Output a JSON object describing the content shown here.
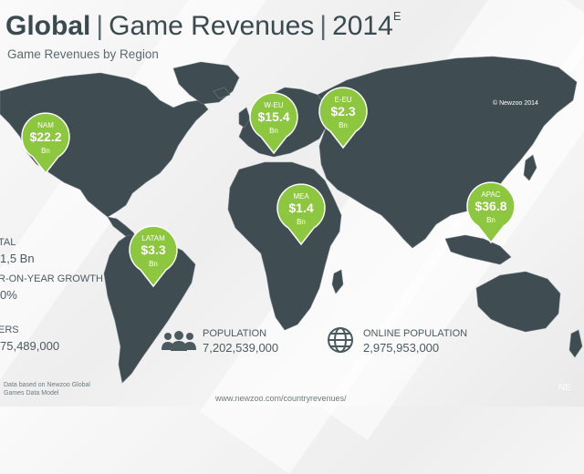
{
  "header": {
    "title_bold": "Global",
    "sep1": "|",
    "title_mid": "Game Revenues",
    "sep2": "|",
    "year": "2014",
    "year_mark": "E",
    "subtitle": "Game Revenues by Region",
    "copyright": "© Newzoo 2014"
  },
  "regions": [
    {
      "label": "NAM",
      "value": "$22.2",
      "unit": "Bn"
    },
    {
      "label": "W-EU",
      "value": "$15.4",
      "unit": "Bn"
    },
    {
      "label": "E-EU",
      "value": "$2.3",
      "unit": "Bn"
    },
    {
      "label": "MEA",
      "value": "$1.4",
      "unit": "Bn"
    },
    {
      "label": "APAC",
      "value": "$36.8",
      "unit": "Bn"
    },
    {
      "label": "LATAM",
      "value": "$3.3",
      "unit": "Bn"
    }
  ],
  "stats": {
    "total_label": "TAL",
    "total_value": "1,5 Bn",
    "growth_label": "R-ON-YEAR GROWTH",
    "growth_value": "0%",
    "players_label": "ERS",
    "players_value": "75,489,000",
    "population_label": "POPULATION",
    "population_value": "7,202,539,000",
    "online_label": "ONLINE POPULATION",
    "online_value": "2,975,953,000"
  },
  "footer": {
    "note_line1": "Data based on Newzoo Global",
    "note_line2": "Games Data Model",
    "url": "www.newzoo.com/countryrevenues/",
    "corner": "NE"
  },
  "colors": {
    "pin": "#8dc63f",
    "map": "#3f4d52",
    "text": "#3b4a4f"
  }
}
